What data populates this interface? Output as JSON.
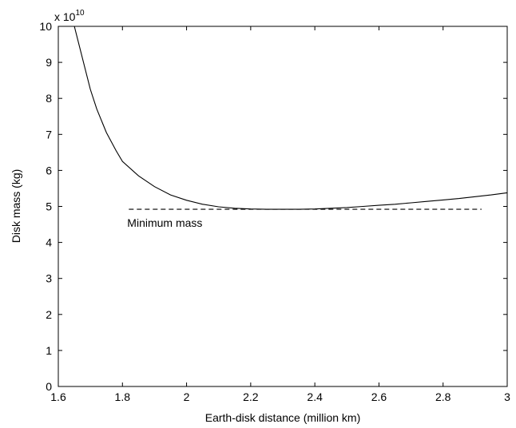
{
  "chart_data": {
    "type": "line",
    "title": "",
    "xlabel": "Earth-disk distance (million km)",
    "ylabel": "Disk mass (kg)",
    "xlim": [
      1.6,
      3.0
    ],
    "ylim": [
      0,
      10
    ],
    "y_multiplier": {
      "base": "x 10",
      "exponent": "10"
    },
    "x_ticks": [
      "1.6",
      "1.8",
      "2",
      "2.2",
      "2.4",
      "2.6",
      "2.8",
      "3"
    ],
    "y_ticks": [
      "0",
      "1",
      "2",
      "3",
      "4",
      "5",
      "6",
      "7",
      "8",
      "9",
      "10"
    ],
    "grid": false,
    "series": [
      {
        "style": "solid",
        "color": "#000000",
        "x": [
          1.65,
          1.68,
          1.7,
          1.72,
          1.75,
          1.78,
          1.8,
          1.85,
          1.9,
          1.95,
          2.0,
          2.05,
          2.1,
          2.15,
          2.2,
          2.25,
          2.3,
          2.35,
          2.4,
          2.45,
          2.5,
          2.55,
          2.6,
          2.65,
          2.7,
          2.75,
          2.8,
          2.85,
          2.9,
          2.95,
          3.0
        ],
        "y": [
          10.0,
          8.95,
          8.25,
          7.7,
          7.05,
          6.55,
          6.25,
          5.85,
          5.55,
          5.32,
          5.17,
          5.06,
          4.99,
          4.95,
          4.93,
          4.92,
          4.92,
          4.92,
          4.93,
          4.95,
          4.97,
          5.0,
          5.03,
          5.06,
          5.1,
          5.14,
          5.18,
          5.22,
          5.27,
          5.32,
          5.38
        ]
      },
      {
        "style": "dashed",
        "color": "#000000",
        "x": [
          1.82,
          2.92
        ],
        "y": [
          4.92,
          4.92
        ]
      }
    ],
    "annotations": [
      {
        "text": "Minimum mass",
        "x": 1.815,
        "y": 4.55
      }
    ]
  }
}
